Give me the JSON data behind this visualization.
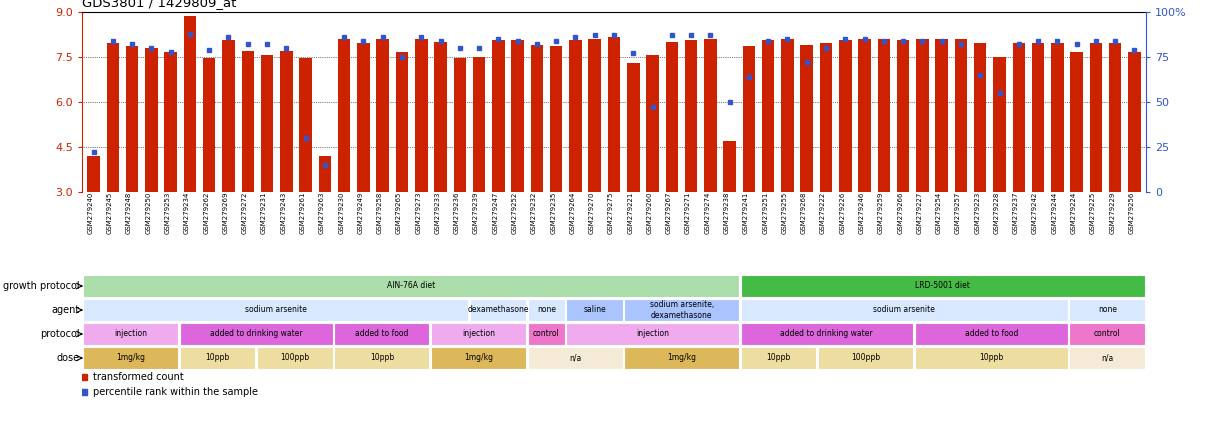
{
  "title": "GDS3801 / 1429809_at",
  "samples": [
    "GSM279240",
    "GSM279245",
    "GSM279248",
    "GSM279250",
    "GSM279253",
    "GSM279234",
    "GSM279262",
    "GSM279269",
    "GSM279272",
    "GSM279231",
    "GSM279243",
    "GSM279261",
    "GSM279263",
    "GSM279230",
    "GSM279249",
    "GSM279258",
    "GSM279265",
    "GSM279273",
    "GSM279233",
    "GSM279236",
    "GSM279239",
    "GSM279247",
    "GSM279252",
    "GSM279232",
    "GSM279235",
    "GSM279264",
    "GSM279270",
    "GSM279275",
    "GSM279221",
    "GSM279260",
    "GSM279267",
    "GSM279271",
    "GSM279274",
    "GSM279238",
    "GSM279241",
    "GSM279251",
    "GSM279255",
    "GSM279268",
    "GSM279222",
    "GSM279226",
    "GSM279246",
    "GSM279259",
    "GSM279266",
    "GSM279227",
    "GSM279254",
    "GSM279257",
    "GSM279223",
    "GSM279228",
    "GSM279237",
    "GSM279242",
    "GSM279244",
    "GSM279224",
    "GSM279225",
    "GSM279229",
    "GSM279256"
  ],
  "bar_values": [
    4.2,
    7.95,
    7.85,
    7.8,
    7.65,
    8.85,
    7.45,
    8.05,
    7.7,
    7.55,
    7.7,
    7.45,
    4.2,
    8.1,
    7.95,
    8.1,
    7.65,
    8.1,
    8.0,
    7.45,
    7.5,
    8.05,
    8.05,
    7.9,
    7.85,
    8.05,
    8.1,
    8.15,
    7.3,
    7.55,
    8.0,
    8.05,
    8.1,
    4.7,
    7.85,
    8.05,
    8.1,
    7.9,
    7.95,
    8.05,
    8.1,
    8.1,
    8.05,
    8.1,
    8.1,
    8.1,
    7.95,
    7.5,
    7.95,
    7.95,
    7.95,
    7.65,
    7.95,
    7.95,
    7.65
  ],
  "percentile_values": [
    22,
    84,
    82,
    80,
    78,
    88,
    79,
    86,
    82,
    82,
    80,
    30,
    15,
    86,
    84,
    86,
    75,
    86,
    84,
    80,
    80,
    85,
    84,
    82,
    84,
    86,
    87,
    87,
    77,
    47,
    87,
    87,
    87,
    50,
    64,
    84,
    85,
    72,
    80,
    85,
    85,
    84,
    84,
    84,
    84,
    82,
    65,
    55,
    82,
    84,
    84,
    82,
    84,
    84,
    79
  ],
  "ymin": 3,
  "ymax": 9,
  "yticks": [
    3,
    4.5,
    6,
    7.5,
    9
  ],
  "right_yticks": [
    0,
    25,
    50,
    75,
    100
  ],
  "bar_color": "#cc2200",
  "dot_color": "#3355cc",
  "rows": [
    {
      "label": "growth protocol",
      "segments": [
        {
          "text": "AIN-76A diet",
          "start": 0,
          "end": 34,
          "color": "#aaddaa"
        },
        {
          "text": "LRD-5001 diet",
          "start": 34,
          "end": 55,
          "color": "#44bb44"
        }
      ]
    },
    {
      "label": "agent",
      "segments": [
        {
          "text": "sodium arsenite",
          "start": 0,
          "end": 20,
          "color": "#d8e8ff"
        },
        {
          "text": "dexamethasone",
          "start": 20,
          "end": 23,
          "color": "#d8e8ff"
        },
        {
          "text": "none",
          "start": 23,
          "end": 25,
          "color": "#d8e8ff"
        },
        {
          "text": "saline",
          "start": 25,
          "end": 28,
          "color": "#aac4ff"
        },
        {
          "text": "sodium arsenite,\ndexamethasone",
          "start": 28,
          "end": 34,
          "color": "#aac4ff"
        },
        {
          "text": "sodium arsenite",
          "start": 34,
          "end": 51,
          "color": "#d8e8ff"
        },
        {
          "text": "none",
          "start": 51,
          "end": 55,
          "color": "#d8e8ff"
        }
      ]
    },
    {
      "label": "protocol",
      "segments": [
        {
          "text": "injection",
          "start": 0,
          "end": 5,
          "color": "#f0aaee"
        },
        {
          "text": "added to drinking water",
          "start": 5,
          "end": 13,
          "color": "#dd66dd"
        },
        {
          "text": "added to food",
          "start": 13,
          "end": 18,
          "color": "#dd66dd"
        },
        {
          "text": "injection",
          "start": 18,
          "end": 23,
          "color": "#f0aaee"
        },
        {
          "text": "control",
          "start": 23,
          "end": 25,
          "color": "#ee77cc"
        },
        {
          "text": "injection",
          "start": 25,
          "end": 34,
          "color": "#f0aaee"
        },
        {
          "text": "added to drinking water",
          "start": 34,
          "end": 43,
          "color": "#dd66dd"
        },
        {
          "text": "added to food",
          "start": 43,
          "end": 51,
          "color": "#dd66dd"
        },
        {
          "text": "control",
          "start": 51,
          "end": 55,
          "color": "#ee77cc"
        }
      ]
    },
    {
      "label": "dose",
      "segments": [
        {
          "text": "1mg/kg",
          "start": 0,
          "end": 5,
          "color": "#ddb85a"
        },
        {
          "text": "10ppb",
          "start": 5,
          "end": 9,
          "color": "#eedda0"
        },
        {
          "text": "100ppb",
          "start": 9,
          "end": 13,
          "color": "#eedda0"
        },
        {
          "text": "10ppb",
          "start": 13,
          "end": 18,
          "color": "#eedda0"
        },
        {
          "text": "1mg/kg",
          "start": 18,
          "end": 23,
          "color": "#ddb85a"
        },
        {
          "text": "n/a",
          "start": 23,
          "end": 28,
          "color": "#f5ead5"
        },
        {
          "text": "1mg/kg",
          "start": 28,
          "end": 34,
          "color": "#ddb85a"
        },
        {
          "text": "10ppb",
          "start": 34,
          "end": 38,
          "color": "#eedda0"
        },
        {
          "text": "100ppb",
          "start": 38,
          "end": 43,
          "color": "#eedda0"
        },
        {
          "text": "10ppb",
          "start": 43,
          "end": 51,
          "color": "#eedda0"
        },
        {
          "text": "n/a",
          "start": 51,
          "end": 55,
          "color": "#f5ead5"
        }
      ]
    }
  ],
  "fig_width": 12.06,
  "fig_height": 4.44,
  "dpi": 100
}
